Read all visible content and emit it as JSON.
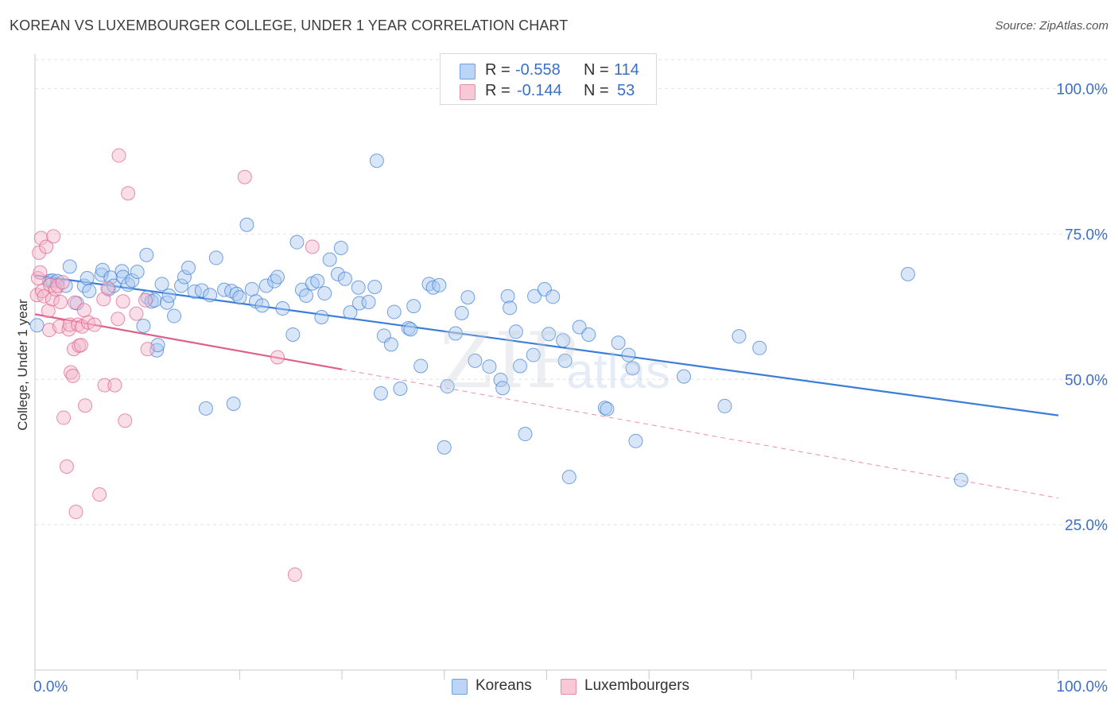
{
  "title": "KOREAN VS LUXEMBOURGER COLLEGE, UNDER 1 YEAR CORRELATION CHART",
  "source": "Source: ZipAtlas.com",
  "watermark": {
    "zip": "ZIP",
    "atlas": "atlas"
  },
  "legend": {
    "r_label": "R =",
    "n_label": "N =",
    "items": [
      {
        "name": "Koreans",
        "r": "-0.558",
        "n": "114",
        "color": "#6fa0e0",
        "fill": "#bcd4f5"
      },
      {
        "name": "Luxembourgers",
        "r": "-0.144",
        "n": "53",
        "color": "#e88aa8",
        "fill": "#f8c8d6"
      }
    ]
  },
  "chart_data": {
    "type": "scatter",
    "title": "KOREAN VS LUXEMBOURGER COLLEGE, UNDER 1 YEAR CORRELATION CHART",
    "xlabel": "",
    "ylabel": "College, Under 1 year",
    "xlim": [
      0,
      100
    ],
    "ylim": [
      0,
      105
    ],
    "x_tick_labels": [
      "0.0%",
      "100.0%"
    ],
    "y_ticks": [
      25,
      50,
      75,
      100
    ],
    "y_tick_labels": [
      "25.0%",
      "50.0%",
      "75.0%",
      "100.0%"
    ],
    "grid": true,
    "series": [
      {
        "name": "Koreans",
        "color": "#3b7dd8",
        "fill": "#a9c7f0",
        "trend": {
          "x0": 0,
          "y0": 67.9,
          "x1": 100,
          "y1": 43.8,
          "dashed_from": null
        },
        "points": [
          [
            0.2,
            59.3
          ],
          [
            1.4,
            66.9
          ],
          [
            1.7,
            67.0
          ],
          [
            2.2,
            66.9
          ],
          [
            3.0,
            66.1
          ],
          [
            3.4,
            69.4
          ],
          [
            4.1,
            63.1
          ],
          [
            4.8,
            66.1
          ],
          [
            5.1,
            67.4
          ],
          [
            5.3,
            65.2
          ],
          [
            6.5,
            68.0
          ],
          [
            6.6,
            68.8
          ],
          [
            7.2,
            65.5
          ],
          [
            7.4,
            67.5
          ],
          [
            7.7,
            66.1
          ],
          [
            8.5,
            68.6
          ],
          [
            8.6,
            67.6
          ],
          [
            9.1,
            66.3
          ],
          [
            9.5,
            67.0
          ],
          [
            10.0,
            68.5
          ],
          [
            10.6,
            59.2
          ],
          [
            10.9,
            71.4
          ],
          [
            11.0,
            64.1
          ],
          [
            11.4,
            63.4
          ],
          [
            11.7,
            63.6
          ],
          [
            11.9,
            55.0
          ],
          [
            12.0,
            55.9
          ],
          [
            12.4,
            66.4
          ],
          [
            12.9,
            63.2
          ],
          [
            13.1,
            64.4
          ],
          [
            13.6,
            60.9
          ],
          [
            14.3,
            66.1
          ],
          [
            14.6,
            67.6
          ],
          [
            15.0,
            69.2
          ],
          [
            15.6,
            65.1
          ],
          [
            16.3,
            65.3
          ],
          [
            16.7,
            45.0
          ],
          [
            17.1,
            64.5
          ],
          [
            17.7,
            70.9
          ],
          [
            18.5,
            65.4
          ],
          [
            19.2,
            65.2
          ],
          [
            19.4,
            45.8
          ],
          [
            19.7,
            64.7
          ],
          [
            20.0,
            64.1
          ],
          [
            20.7,
            76.6
          ],
          [
            21.2,
            65.5
          ],
          [
            21.6,
            63.4
          ],
          [
            22.2,
            62.7
          ],
          [
            22.6,
            66.1
          ],
          [
            23.4,
            66.9
          ],
          [
            23.7,
            67.6
          ],
          [
            24.2,
            62.2
          ],
          [
            25.2,
            57.7
          ],
          [
            25.6,
            73.6
          ],
          [
            26.1,
            65.4
          ],
          [
            26.5,
            64.4
          ],
          [
            27.1,
            66.5
          ],
          [
            27.6,
            66.9
          ],
          [
            28.0,
            60.7
          ],
          [
            28.3,
            64.8
          ],
          [
            28.8,
            70.6
          ],
          [
            29.6,
            68.1
          ],
          [
            29.9,
            72.6
          ],
          [
            30.3,
            67.3
          ],
          [
            30.8,
            61.5
          ],
          [
            31.6,
            65.8
          ],
          [
            31.7,
            63.1
          ],
          [
            32.6,
            63.3
          ],
          [
            33.2,
            65.9
          ],
          [
            33.4,
            87.6
          ],
          [
            33.8,
            47.6
          ],
          [
            34.1,
            57.5
          ],
          [
            34.8,
            56.0
          ],
          [
            35.1,
            61.6
          ],
          [
            35.7,
            48.4
          ],
          [
            36.5,
            58.8
          ],
          [
            36.7,
            58.6
          ],
          [
            37.0,
            62.6
          ],
          [
            37.7,
            52.3
          ],
          [
            38.5,
            66.4
          ],
          [
            38.9,
            65.8
          ],
          [
            39.5,
            66.2
          ],
          [
            40.0,
            38.3
          ],
          [
            40.3,
            48.8
          ],
          [
            41.1,
            57.9
          ],
          [
            41.7,
            61.4
          ],
          [
            42.3,
            64.1
          ],
          [
            43.0,
            53.2
          ],
          [
            44.4,
            52.2
          ],
          [
            45.5,
            49.9
          ],
          [
            45.7,
            48.5
          ],
          [
            46.2,
            64.3
          ],
          [
            46.4,
            62.3
          ],
          [
            47.0,
            58.2
          ],
          [
            47.4,
            52.3
          ],
          [
            47.9,
            40.6
          ],
          [
            48.7,
            54.2
          ],
          [
            48.8,
            64.3
          ],
          [
            49.8,
            65.5
          ],
          [
            50.2,
            57.8
          ],
          [
            50.6,
            64.2
          ],
          [
            51.6,
            56.7
          ],
          [
            51.8,
            53.2
          ],
          [
            52.2,
            33.2
          ],
          [
            53.2,
            59.0
          ],
          [
            54.1,
            57.7
          ],
          [
            55.7,
            45.1
          ],
          [
            55.9,
            44.9
          ],
          [
            57.0,
            56.3
          ],
          [
            58.0,
            54.2
          ],
          [
            58.4,
            51.9
          ],
          [
            58.7,
            39.4
          ],
          [
            63.4,
            50.5
          ],
          [
            67.4,
            45.4
          ],
          [
            68.8,
            57.4
          ],
          [
            70.8,
            55.4
          ],
          [
            85.3,
            68.1
          ],
          [
            90.5,
            32.7
          ]
        ]
      },
      {
        "name": "Luxembourgers",
        "color": "#e0608a",
        "fill": "#f4b6c9",
        "trend": {
          "x0": 0,
          "y0": 61.2,
          "x1": 100,
          "y1": 29.6,
          "dashed_from": 30
        },
        "points": [
          [
            0.2,
            64.5
          ],
          [
            0.3,
            67.4
          ],
          [
            0.4,
            71.8
          ],
          [
            0.5,
            68.4
          ],
          [
            0.6,
            74.3
          ],
          [
            0.7,
            65.2
          ],
          [
            0.9,
            64.3
          ],
          [
            1.1,
            72.8
          ],
          [
            1.3,
            61.8
          ],
          [
            1.4,
            58.5
          ],
          [
            1.5,
            66.2
          ],
          [
            1.7,
            63.8
          ],
          [
            1.8,
            74.6
          ],
          [
            2.0,
            65.5
          ],
          [
            2.2,
            66.1
          ],
          [
            2.4,
            59.1
          ],
          [
            2.5,
            63.3
          ],
          [
            2.7,
            66.7
          ],
          [
            2.8,
            43.4
          ],
          [
            3.1,
            35.0
          ],
          [
            3.3,
            58.6
          ],
          [
            3.4,
            59.4
          ],
          [
            3.5,
            51.2
          ],
          [
            3.7,
            50.6
          ],
          [
            3.8,
            55.2
          ],
          [
            3.9,
            63.2
          ],
          [
            4.0,
            27.2
          ],
          [
            4.2,
            59.4
          ],
          [
            4.3,
            55.8
          ],
          [
            4.5,
            55.9
          ],
          [
            4.6,
            59.1
          ],
          [
            4.8,
            61.9
          ],
          [
            4.9,
            45.5
          ],
          [
            5.2,
            59.8
          ],
          [
            5.8,
            59.4
          ],
          [
            6.3,
            30.2
          ],
          [
            6.7,
            63.8
          ],
          [
            6.8,
            49.0
          ],
          [
            7.1,
            65.7
          ],
          [
            7.8,
            49.0
          ],
          [
            8.1,
            60.4
          ],
          [
            8.2,
            88.5
          ],
          [
            8.6,
            63.4
          ],
          [
            8.8,
            42.9
          ],
          [
            9.1,
            82.0
          ],
          [
            9.9,
            61.3
          ],
          [
            10.8,
            63.6
          ],
          [
            11.0,
            55.2
          ],
          [
            20.5,
            84.8
          ],
          [
            23.7,
            53.8
          ],
          [
            25.4,
            16.4
          ],
          [
            27.1,
            72.8
          ]
        ]
      }
    ]
  }
}
